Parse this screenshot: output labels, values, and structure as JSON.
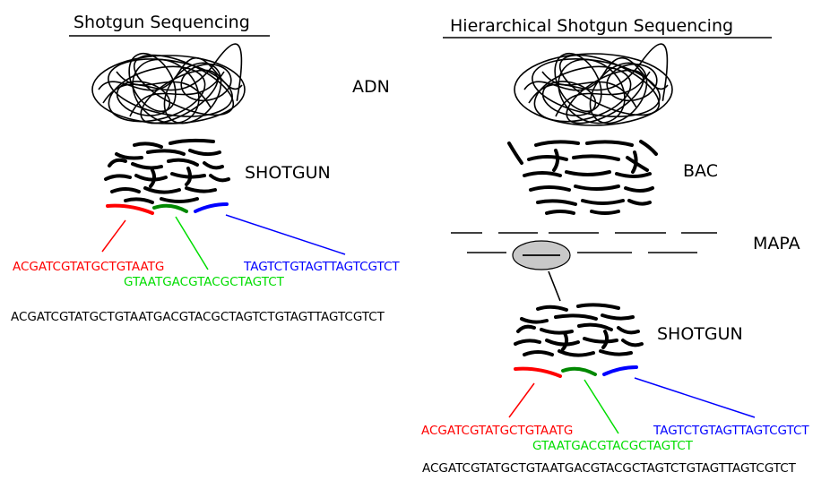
{
  "left": {
    "title": "Shotgun Sequencing",
    "dna_label": "ADN",
    "shotgun_label": "SHOTGUN",
    "fragments": [
      {
        "seq": "ACGATCGTATGCTGTAATG",
        "color": "#ff0000"
      },
      {
        "seq": "GTAATGACGTACGCTAGTCT",
        "color": "#00dd00"
      },
      {
        "seq": "TAGTCTGTAGTTAGTCGTCT",
        "color": "#0000ff"
      }
    ],
    "assembled": "ACGATCGTATGCTGTAATGACGTACGCTAGTCTGTAGTTAGTCGTCT"
  },
  "right": {
    "title": "Hierarchical Shotgun Sequencing",
    "bac_label": "BAC",
    "map_label": "MAPA",
    "shotgun_label": "SHOTGUN",
    "fragments": [
      {
        "seq": "ACGATCGTATGCTGTAATG",
        "color": "#ff0000"
      },
      {
        "seq": "GTAATGACGTACGCTAGTCT",
        "color": "#00dd00"
      },
      {
        "seq": "TAGTCTGTAGTTAGTCGTCT",
        "color": "#0000ff"
      }
    ],
    "assembled": "ACGATCGTATGCTGTAATGACGTACGCTAGTCTGTAGTTAGTCGTCT"
  },
  "colors": {
    "red": "#ff0000",
    "green": "#00dd00",
    "blue": "#0000ff",
    "map_oval": "#c8c8c8"
  }
}
